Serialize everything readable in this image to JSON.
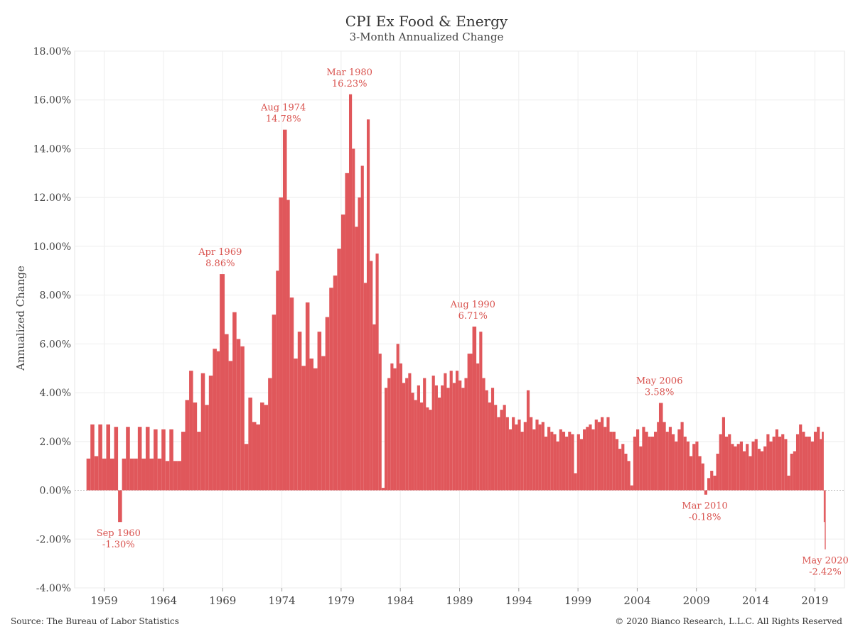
{
  "header": {
    "title": "CPI Ex Food & Energy",
    "subtitle": "3-Month Annualized Change"
  },
  "footer": {
    "source": "Source: The Bureau of Labor Statistics",
    "copyright": "© 2020 Bianco Research, L.L.C. All Rights Reserved"
  },
  "colors": {
    "bars": "#e0575b",
    "annotation": "#d9534f",
    "grid": "#eeeeee",
    "zero_line": "#bbbbbb"
  },
  "chart_data": {
    "type": "bar",
    "title": "CPI Ex Food & Energy",
    "subtitle": "3-Month Annualized Change",
    "xlabel": "",
    "ylabel": "Annualized Change",
    "xlim": [
      "1957-01",
      "2021-12"
    ],
    "ylim": [
      -4,
      18
    ],
    "y_ticks": [
      -4,
      -2,
      0,
      2,
      4,
      6,
      8,
      10,
      12,
      14,
      16,
      18
    ],
    "y_tick_labels": [
      "-4.00%",
      "-2.00%",
      "0.00%",
      "2.00%",
      "4.00%",
      "6.00%",
      "8.00%",
      "10.00%",
      "12.00%",
      "14.00%",
      "16.00%",
      "18.00%"
    ],
    "x_ticks": [
      1959,
      1964,
      1969,
      1974,
      1979,
      1984,
      1989,
      1994,
      1999,
      2004,
      2009,
      2014,
      2019
    ],
    "x_tick_labels": [
      "1959",
      "1964",
      "1969",
      "1974",
      "1979",
      "1984",
      "1989",
      "1994",
      "1999",
      "2004",
      "2009",
      "2014",
      "2019"
    ],
    "grid": true,
    "series": [
      {
        "points": [
          [
            "1958-01",
            1.3
          ],
          [
            "1958-05",
            2.7
          ],
          [
            "1958-09",
            1.4
          ],
          [
            "1959-01",
            2.7
          ],
          [
            "1959-05",
            1.3
          ],
          [
            "1959-09",
            2.7
          ],
          [
            "1960-01",
            1.3
          ],
          [
            "1960-05",
            2.6
          ],
          [
            "1960-09",
            -1.3
          ],
          [
            "1961-01",
            1.3
          ],
          [
            "1961-05",
            2.6
          ],
          [
            "1961-09",
            1.3
          ],
          [
            "1962-01",
            1.3
          ],
          [
            "1962-05",
            2.6
          ],
          [
            "1962-09",
            1.3
          ],
          [
            "1963-01",
            2.6
          ],
          [
            "1963-05",
            1.3
          ],
          [
            "1963-09",
            2.5
          ],
          [
            "1964-01",
            1.3
          ],
          [
            "1964-05",
            2.5
          ],
          [
            "1964-09",
            1.2
          ],
          [
            "1965-01",
            2.5
          ],
          [
            "1965-05",
            1.2
          ],
          [
            "1965-09",
            1.2
          ],
          [
            "1966-01",
            2.4
          ],
          [
            "1966-05",
            3.7
          ],
          [
            "1966-09",
            4.9
          ],
          [
            "1967-01",
            3.6
          ],
          [
            "1967-05",
            2.4
          ],
          [
            "1967-09",
            4.8
          ],
          [
            "1968-01",
            3.5
          ],
          [
            "1968-05",
            4.7
          ],
          [
            "1968-09",
            5.8
          ],
          [
            "1969-01",
            5.7
          ],
          [
            "1969-04",
            8.86
          ],
          [
            "1969-09",
            6.4
          ],
          [
            "1970-01",
            5.3
          ],
          [
            "1970-05",
            7.3
          ],
          [
            "1970-09",
            6.2
          ],
          [
            "1971-01",
            5.9
          ],
          [
            "1971-05",
            1.9
          ],
          [
            "1971-09",
            3.8
          ],
          [
            "1972-01",
            2.8
          ],
          [
            "1972-05",
            2.7
          ],
          [
            "1972-09",
            3.6
          ],
          [
            "1973-01",
            3.5
          ],
          [
            "1973-05",
            4.6
          ],
          [
            "1973-09",
            7.2
          ],
          [
            "1974-01",
            9.0
          ],
          [
            "1974-04",
            12.0
          ],
          [
            "1974-08",
            14.78
          ],
          [
            "1974-12",
            11.9
          ],
          [
            "1975-03",
            7.9
          ],
          [
            "1975-07",
            5.4
          ],
          [
            "1975-11",
            6.5
          ],
          [
            "1976-03",
            5.1
          ],
          [
            "1976-07",
            7.7
          ],
          [
            "1976-11",
            5.4
          ],
          [
            "1977-03",
            5.0
          ],
          [
            "1977-07",
            6.5
          ],
          [
            "1977-11",
            5.5
          ],
          [
            "1978-03",
            7.1
          ],
          [
            "1978-07",
            8.3
          ],
          [
            "1978-11",
            8.8
          ],
          [
            "1979-03",
            9.9
          ],
          [
            "1979-07",
            11.3
          ],
          [
            "1979-11",
            13.0
          ],
          [
            "1980-03",
            16.23
          ],
          [
            "1980-06",
            14.0
          ],
          [
            "1980-09",
            10.8
          ],
          [
            "1980-12",
            12.0
          ],
          [
            "1981-03",
            13.3
          ],
          [
            "1981-06",
            8.5
          ],
          [
            "1981-09",
            15.2
          ],
          [
            "1981-12",
            9.4
          ],
          [
            "1982-03",
            6.8
          ],
          [
            "1982-06",
            9.7
          ],
          [
            "1982-09",
            5.6
          ],
          [
            "1982-12",
            0.1
          ],
          [
            "1983-03",
            4.2
          ],
          [
            "1983-06",
            4.6
          ],
          [
            "1983-09",
            5.2
          ],
          [
            "1983-12",
            5.0
          ],
          [
            "1984-03",
            6.0
          ],
          [
            "1984-06",
            5.2
          ],
          [
            "1984-09",
            4.4
          ],
          [
            "1984-12",
            4.6
          ],
          [
            "1985-03",
            4.8
          ],
          [
            "1985-06",
            4.0
          ],
          [
            "1985-09",
            3.7
          ],
          [
            "1985-12",
            4.3
          ],
          [
            "1986-03",
            3.6
          ],
          [
            "1986-06",
            4.6
          ],
          [
            "1986-09",
            3.4
          ],
          [
            "1986-12",
            3.3
          ],
          [
            "1987-03",
            4.7
          ],
          [
            "1987-06",
            4.3
          ],
          [
            "1987-09",
            3.8
          ],
          [
            "1987-12",
            4.3
          ],
          [
            "1988-03",
            4.8
          ],
          [
            "1988-06",
            4.2
          ],
          [
            "1988-09",
            4.9
          ],
          [
            "1988-12",
            4.4
          ],
          [
            "1989-03",
            4.9
          ],
          [
            "1989-06",
            4.5
          ],
          [
            "1989-09",
            4.2
          ],
          [
            "1989-12",
            4.6
          ],
          [
            "1990-03",
            5.6
          ],
          [
            "1990-08",
            6.71
          ],
          [
            "1990-12",
            5.2
          ],
          [
            "1991-03",
            6.5
          ],
          [
            "1991-06",
            4.6
          ],
          [
            "1991-09",
            4.1
          ],
          [
            "1991-12",
            3.6
          ],
          [
            "1992-03",
            4.2
          ],
          [
            "1992-06",
            3.5
          ],
          [
            "1992-09",
            3.0
          ],
          [
            "1992-12",
            3.3
          ],
          [
            "1993-03",
            3.5
          ],
          [
            "1993-06",
            3.0
          ],
          [
            "1993-09",
            2.5
          ],
          [
            "1993-12",
            3.0
          ],
          [
            "1994-03",
            2.7
          ],
          [
            "1994-06",
            2.9
          ],
          [
            "1994-09",
            2.4
          ],
          [
            "1994-12",
            2.8
          ],
          [
            "1995-03",
            4.1
          ],
          [
            "1995-06",
            3.0
          ],
          [
            "1995-09",
            2.5
          ],
          [
            "1995-12",
            2.9
          ],
          [
            "1996-03",
            2.7
          ],
          [
            "1996-06",
            2.8
          ],
          [
            "1996-09",
            2.2
          ],
          [
            "1996-12",
            2.6
          ],
          [
            "1997-03",
            2.4
          ],
          [
            "1997-06",
            2.3
          ],
          [
            "1997-09",
            2.0
          ],
          [
            "1997-12",
            2.5
          ],
          [
            "1998-03",
            2.4
          ],
          [
            "1998-06",
            2.2
          ],
          [
            "1998-09",
            2.4
          ],
          [
            "1998-12",
            2.3
          ],
          [
            "1999-03",
            0.7
          ],
          [
            "1999-06",
            2.3
          ],
          [
            "1999-09",
            2.1
          ],
          [
            "1999-12",
            2.5
          ],
          [
            "2000-03",
            2.6
          ],
          [
            "2000-06",
            2.7
          ],
          [
            "2000-09",
            2.5
          ],
          [
            "2000-12",
            2.9
          ],
          [
            "2001-03",
            2.8
          ],
          [
            "2001-06",
            3.0
          ],
          [
            "2001-09",
            2.6
          ],
          [
            "2001-12",
            3.0
          ],
          [
            "2002-03",
            2.4
          ],
          [
            "2002-06",
            2.4
          ],
          [
            "2002-09",
            2.1
          ],
          [
            "2002-12",
            1.7
          ],
          [
            "2003-03",
            1.9
          ],
          [
            "2003-06",
            1.5
          ],
          [
            "2003-09",
            1.2
          ],
          [
            "2003-12",
            0.2
          ],
          [
            "2004-03",
            2.2
          ],
          [
            "2004-06",
            2.5
          ],
          [
            "2004-09",
            1.8
          ],
          [
            "2004-12",
            2.6
          ],
          [
            "2005-03",
            2.4
          ],
          [
            "2005-06",
            2.2
          ],
          [
            "2005-09",
            2.2
          ],
          [
            "2005-12",
            2.4
          ],
          [
            "2006-03",
            2.8
          ],
          [
            "2006-05",
            3.58
          ],
          [
            "2006-09",
            2.8
          ],
          [
            "2006-12",
            2.4
          ],
          [
            "2007-03",
            2.6
          ],
          [
            "2007-06",
            2.3
          ],
          [
            "2007-09",
            2.0
          ],
          [
            "2007-12",
            2.5
          ],
          [
            "2008-03",
            2.8
          ],
          [
            "2008-06",
            2.2
          ],
          [
            "2008-09",
            2.0
          ],
          [
            "2008-12",
            1.4
          ],
          [
            "2009-03",
            1.9
          ],
          [
            "2009-06",
            2.0
          ],
          [
            "2009-09",
            1.4
          ],
          [
            "2009-12",
            1.1
          ],
          [
            "2010-03",
            -0.18
          ],
          [
            "2010-06",
            0.5
          ],
          [
            "2010-09",
            0.8
          ],
          [
            "2010-12",
            0.6
          ],
          [
            "2011-03",
            1.5
          ],
          [
            "2011-06",
            2.3
          ],
          [
            "2011-09",
            3.0
          ],
          [
            "2011-12",
            2.2
          ],
          [
            "2012-03",
            2.3
          ],
          [
            "2012-06",
            1.9
          ],
          [
            "2012-09",
            1.8
          ],
          [
            "2012-12",
            1.9
          ],
          [
            "2013-03",
            2.0
          ],
          [
            "2013-06",
            1.6
          ],
          [
            "2013-09",
            1.9
          ],
          [
            "2013-12",
            1.4
          ],
          [
            "2014-03",
            2.0
          ],
          [
            "2014-06",
            2.1
          ],
          [
            "2014-09",
            1.7
          ],
          [
            "2014-12",
            1.6
          ],
          [
            "2015-03",
            1.8
          ],
          [
            "2015-06",
            2.3
          ],
          [
            "2015-09",
            2.0
          ],
          [
            "2015-12",
            2.2
          ],
          [
            "2016-03",
            2.5
          ],
          [
            "2016-06",
            2.2
          ],
          [
            "2016-09",
            2.3
          ],
          [
            "2016-12",
            2.1
          ],
          [
            "2017-03",
            0.6
          ],
          [
            "2017-06",
            1.5
          ],
          [
            "2017-09",
            1.6
          ],
          [
            "2017-12",
            2.3
          ],
          [
            "2018-03",
            2.7
          ],
          [
            "2018-06",
            2.4
          ],
          [
            "2018-09",
            2.2
          ],
          [
            "2018-12",
            2.2
          ],
          [
            "2019-03",
            2.0
          ],
          [
            "2019-06",
            2.4
          ],
          [
            "2019-09",
            2.6
          ],
          [
            "2019-12",
            2.1
          ],
          [
            "2020-02",
            2.4
          ],
          [
            "2020-04",
            -1.3
          ],
          [
            "2020-05",
            -2.42
          ]
        ]
      }
    ],
    "annotations": [
      {
        "date": "1960-09",
        "value": -1.3,
        "label": "Sep 1960",
        "value_label": "-1.30%",
        "position": "below"
      },
      {
        "date": "1969-04",
        "value": 8.86,
        "label": "Apr 1969",
        "value_label": "8.86%",
        "position": "above"
      },
      {
        "date": "1974-08",
        "value": 14.78,
        "label": "Aug 1974",
        "value_label": "14.78%",
        "position": "above"
      },
      {
        "date": "1980-03",
        "value": 16.23,
        "label": "Mar 1980",
        "value_label": "16.23%",
        "position": "above"
      },
      {
        "date": "1990-08",
        "value": 6.71,
        "label": "Aug 1990",
        "value_label": "6.71%",
        "position": "above"
      },
      {
        "date": "2006-05",
        "value": 3.58,
        "label": "May 2006",
        "value_label": "3.58%",
        "position": "above"
      },
      {
        "date": "2010-03",
        "value": -0.18,
        "label": "Mar 2010",
        "value_label": "-0.18%",
        "position": "below"
      },
      {
        "date": "2020-05",
        "value": -2.42,
        "label": "May 2020",
        "value_label": "-2.42%",
        "position": "below"
      }
    ]
  }
}
